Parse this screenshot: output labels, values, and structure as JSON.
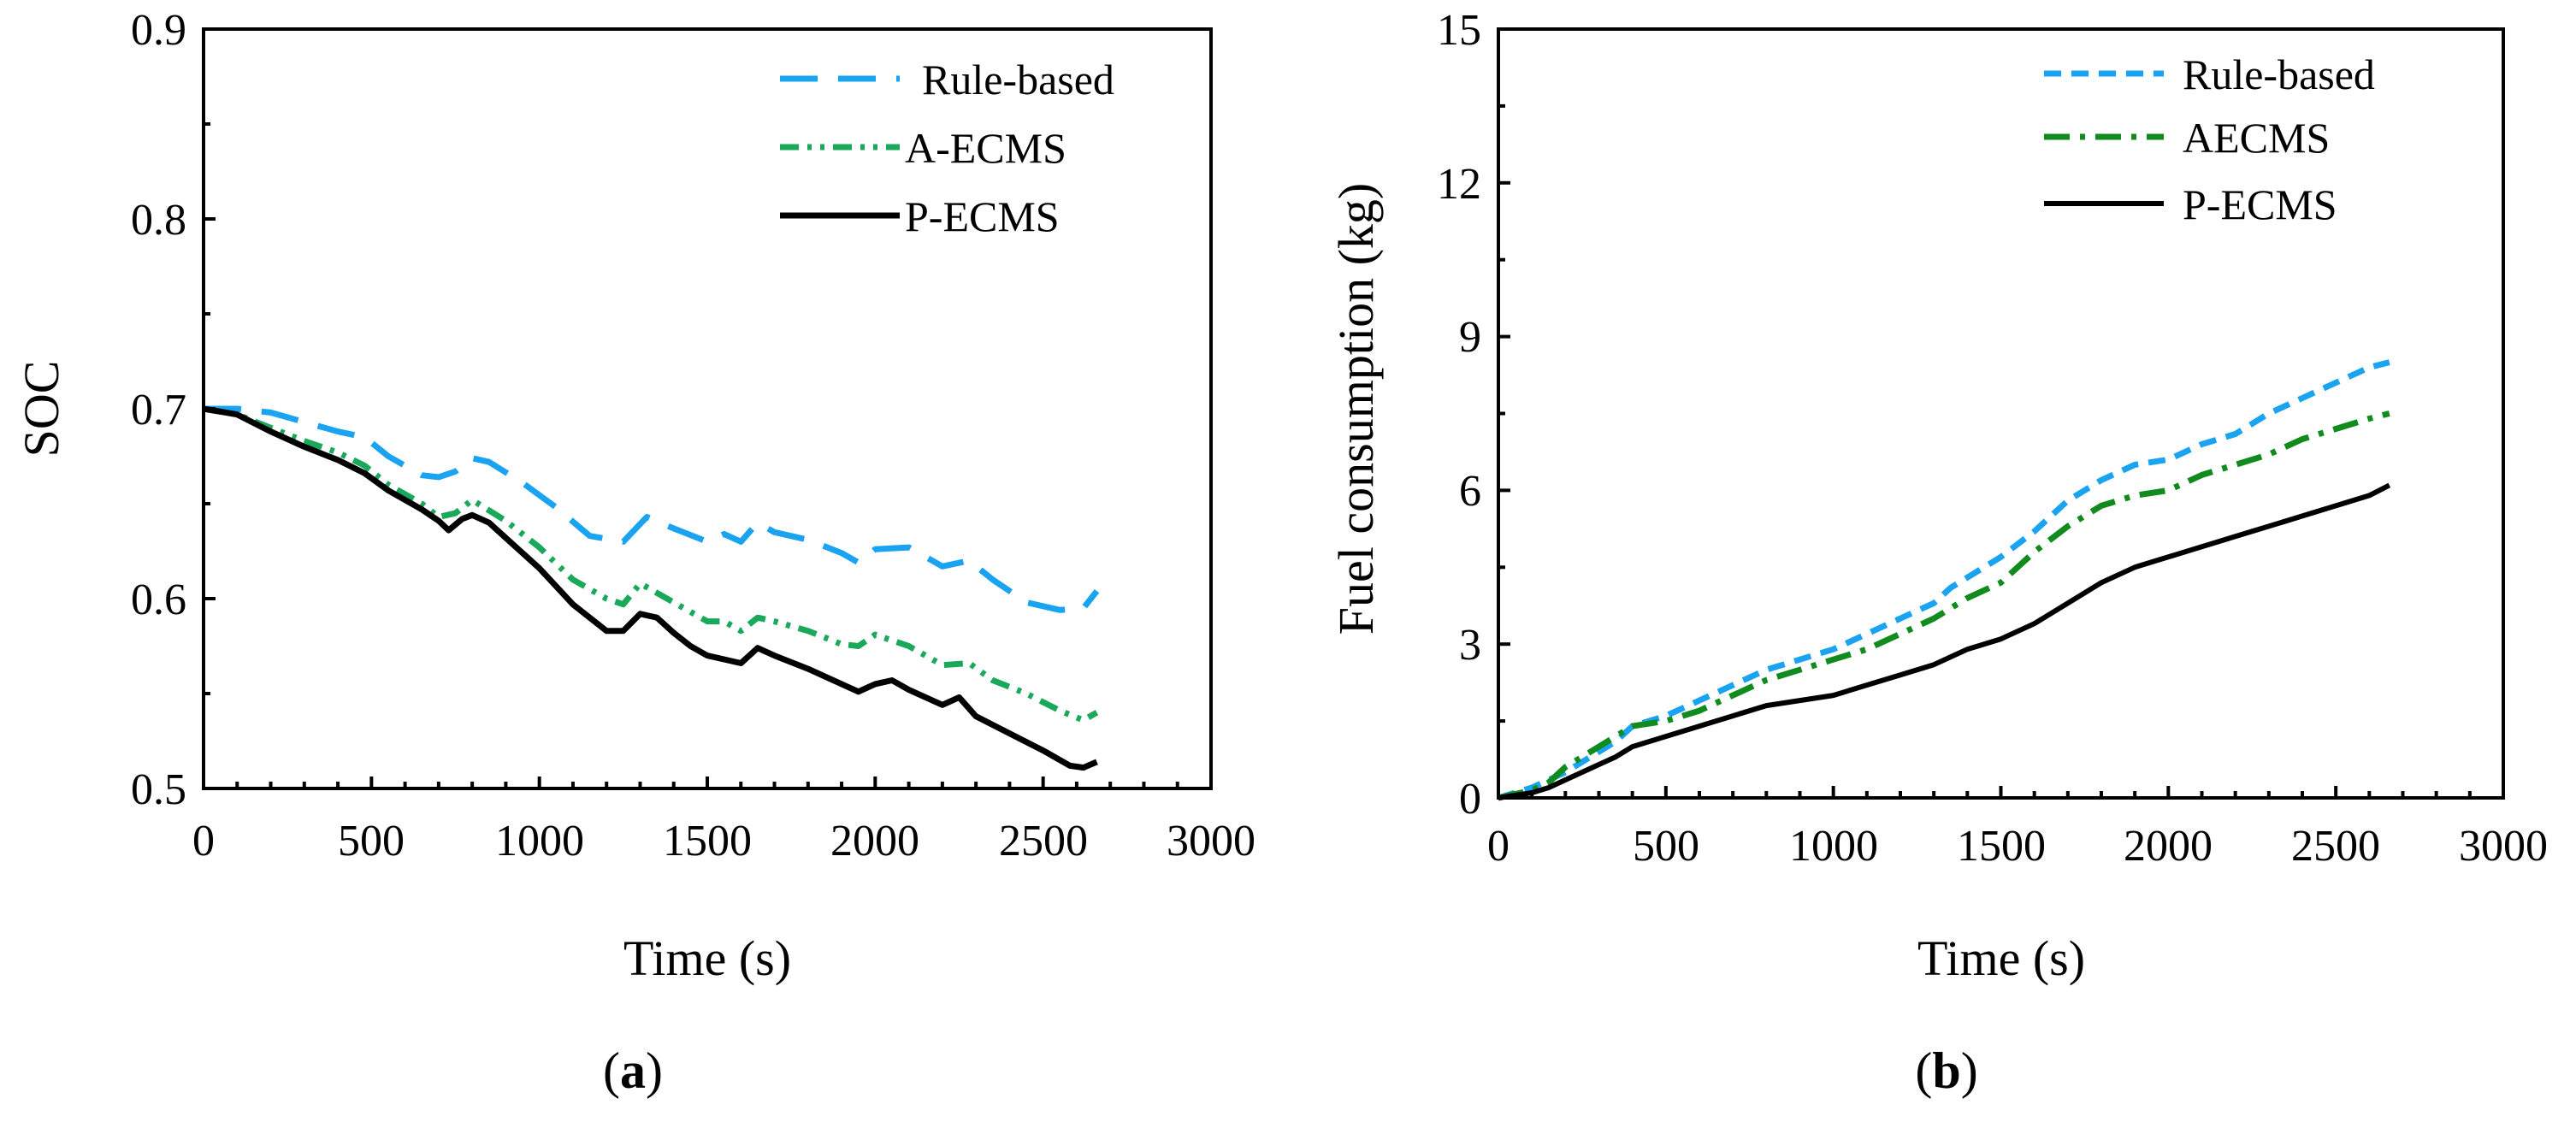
{
  "chart_data": [
    {
      "type": "line",
      "panel_label": "a",
      "xlabel": "Time (s)",
      "ylabel": "SOC",
      "xlim": [
        0,
        3000
      ],
      "ylim": [
        0.5,
        0.9
      ],
      "xticks": [
        "0",
        "500",
        "1000",
        "1500",
        "2000",
        "2500",
        "3000"
      ],
      "yticks": [
        "0.5",
        "0.6",
        "0.7",
        "0.8",
        "0.9"
      ],
      "legend_position": "top-right",
      "series": [
        {
          "name": "Rule-based",
          "color": "#1aa3f0",
          "x": [
            0,
            100,
            200,
            300,
            400,
            480,
            550,
            650,
            700,
            750,
            800,
            850,
            950,
            1050,
            1150,
            1250,
            1320,
            1400,
            1500,
            1550,
            1600,
            1650,
            1700,
            1800,
            1900,
            1950,
            2000,
            2100,
            2200,
            2280,
            2350,
            2450,
            2550,
            2620,
            2660
          ],
          "y": [
            0.7,
            0.7,
            0.698,
            0.693,
            0.688,
            0.685,
            0.675,
            0.665,
            0.664,
            0.667,
            0.674,
            0.672,
            0.661,
            0.648,
            0.633,
            0.63,
            0.643,
            0.637,
            0.63,
            0.634,
            0.63,
            0.64,
            0.635,
            0.631,
            0.624,
            0.619,
            0.626,
            0.627,
            0.617,
            0.62,
            0.61,
            0.598,
            0.594,
            0.595,
            0.604
          ]
        },
        {
          "name": "A-ECMS",
          "color": "#1aa85a",
          "x": [
            0,
            100,
            200,
            300,
            400,
            480,
            550,
            650,
            700,
            750,
            800,
            900,
            1000,
            1100,
            1200,
            1250,
            1300,
            1400,
            1500,
            1550,
            1600,
            1650,
            1700,
            1800,
            1900,
            1950,
            2000,
            2100,
            2200,
            2280,
            2350,
            2450,
            2550,
            2620,
            2660
          ],
          "y": [
            0.7,
            0.697,
            0.69,
            0.683,
            0.677,
            0.67,
            0.66,
            0.65,
            0.643,
            0.645,
            0.652,
            0.641,
            0.627,
            0.61,
            0.6,
            0.597,
            0.608,
            0.598,
            0.588,
            0.588,
            0.583,
            0.59,
            0.588,
            0.583,
            0.576,
            0.575,
            0.581,
            0.575,
            0.565,
            0.566,
            0.557,
            0.55,
            0.541,
            0.536,
            0.54
          ]
        },
        {
          "name": "P-ECMS",
          "color": "#000000",
          "x": [
            0,
            100,
            200,
            300,
            400,
            480,
            550,
            650,
            700,
            730,
            770,
            800,
            850,
            900,
            1000,
            1100,
            1200,
            1250,
            1300,
            1350,
            1400,
            1450,
            1500,
            1550,
            1600,
            1650,
            1700,
            1800,
            1900,
            1950,
            2000,
            2050,
            2100,
            2200,
            2250,
            2300,
            2400,
            2500,
            2580,
            2620,
            2660
          ],
          "y": [
            0.7,
            0.697,
            0.688,
            0.68,
            0.673,
            0.666,
            0.657,
            0.647,
            0.641,
            0.636,
            0.642,
            0.644,
            0.64,
            0.632,
            0.616,
            0.597,
            0.583,
            0.583,
            0.592,
            0.59,
            0.582,
            0.575,
            0.57,
            0.568,
            0.566,
            0.574,
            0.57,
            0.563,
            0.555,
            0.551,
            0.555,
            0.557,
            0.552,
            0.544,
            0.548,
            0.538,
            0.529,
            0.52,
            0.512,
            0.511,
            0.514
          ]
        }
      ]
    },
    {
      "type": "line",
      "panel_label": "b",
      "xlabel": "Time (s)",
      "ylabel": "Fuel consumption (kg)",
      "xlim": [
        0,
        3000
      ],
      "ylim": [
        0,
        15
      ],
      "xticks": [
        "0",
        "500",
        "1000",
        "1500",
        "2000",
        "2500",
        "3000"
      ],
      "yticks": [
        "0",
        "3",
        "6",
        "9",
        "12",
        "15"
      ],
      "legend_position": "top-right",
      "series": [
        {
          "name": "Rule-based",
          "color": "#1aa3f0",
          "x": [
            0,
            100,
            200,
            250,
            300,
            350,
            400,
            500,
            600,
            700,
            800,
            900,
            1000,
            1100,
            1200,
            1300,
            1350,
            1400,
            1500,
            1600,
            1700,
            1800,
            1900,
            2000,
            2100,
            2200,
            2300,
            2400,
            2500,
            2600,
            2660
          ],
          "y": [
            0,
            0.2,
            0.5,
            0.7,
            0.9,
            1.1,
            1.4,
            1.6,
            1.9,
            2.2,
            2.5,
            2.7,
            2.9,
            3.2,
            3.5,
            3.8,
            4.1,
            4.3,
            4.7,
            5.2,
            5.8,
            6.2,
            6.5,
            6.6,
            6.9,
            7.1,
            7.5,
            7.8,
            8.1,
            8.4,
            8.5
          ]
        },
        {
          "name": "AECMS",
          "color": "#118a1e",
          "x": [
            0,
            100,
            150,
            200,
            250,
            300,
            350,
            400,
            500,
            600,
            700,
            800,
            900,
            1000,
            1100,
            1200,
            1300,
            1400,
            1500,
            1600,
            1700,
            1800,
            1900,
            2000,
            2100,
            2200,
            2300,
            2400,
            2500,
            2600,
            2660
          ],
          "y": [
            0,
            0.15,
            0.3,
            0.6,
            0.8,
            1.0,
            1.2,
            1.4,
            1.5,
            1.7,
            2.0,
            2.3,
            2.5,
            2.7,
            2.9,
            3.2,
            3.5,
            3.9,
            4.2,
            4.8,
            5.3,
            5.7,
            5.9,
            6.0,
            6.3,
            6.5,
            6.7,
            7.0,
            7.2,
            7.4,
            7.5
          ]
        },
        {
          "name": "P-ECMS",
          "color": "#000000",
          "x": [
            0,
            100,
            150,
            200,
            250,
            300,
            350,
            400,
            500,
            600,
            700,
            800,
            900,
            1000,
            1100,
            1200,
            1300,
            1400,
            1500,
            1600,
            1700,
            1800,
            1900,
            2000,
            2100,
            2200,
            2300,
            2400,
            2500,
            2600,
            2660
          ],
          "y": [
            0,
            0.1,
            0.2,
            0.35,
            0.5,
            0.65,
            0.8,
            1.0,
            1.2,
            1.4,
            1.6,
            1.8,
            1.9,
            2.0,
            2.2,
            2.4,
            2.6,
            2.9,
            3.1,
            3.4,
            3.8,
            4.2,
            4.5,
            4.7,
            4.9,
            5.1,
            5.3,
            5.5,
            5.7,
            5.9,
            6.1
          ]
        }
      ]
    }
  ]
}
